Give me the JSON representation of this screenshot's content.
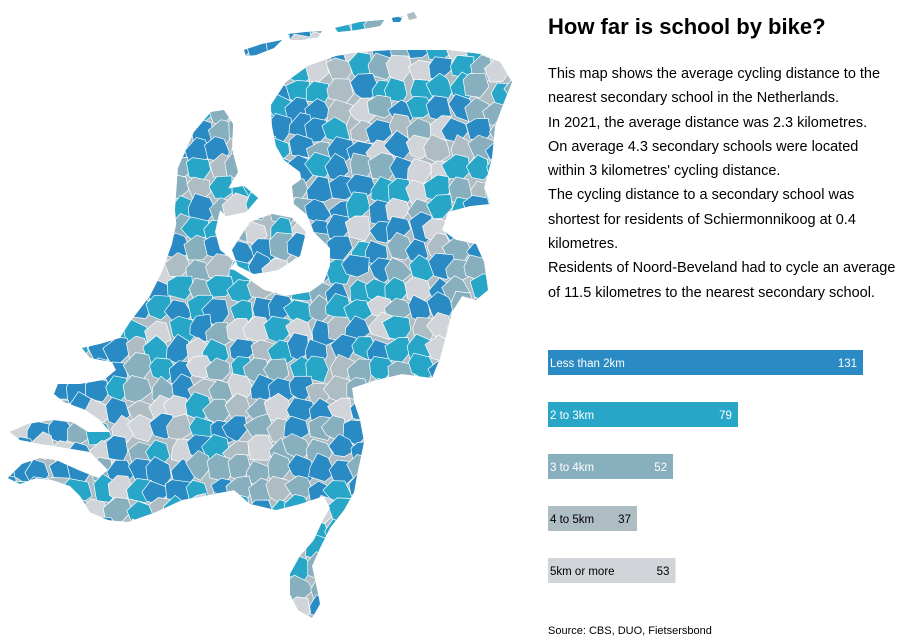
{
  "title": "How far is school by bike?",
  "description": [
    "This map shows the average cycling distance to the nearest secondary school in the Netherlands.",
    "In 2021, the average distance was 2.3 kilometres.",
    "On average 4.3 secondary schools were located within 3 kilometres' cycling distance.",
    "The cycling distance to a secondary school was shortest for residents of Schiermonnikoog at 0.4 kilometres.",
    "Residents of Noord-Beveland had to cycle an average of 11.5 kilometres to the nearest secondary school."
  ],
  "source": "Source: CBS, DUO, Fietsersbond",
  "colors": {
    "less_than_2km": "#2a8ac4",
    "2_to_3km": "#27a6c8",
    "3_to_4km": "#88afbe",
    "4_to_5km": "#aebcc3",
    "5km_or_more": "#d1d5d9"
  },
  "chart_data": {
    "type": "bar",
    "orientation": "horizontal",
    "categories": [
      "Less than 2km",
      "2 to 3km",
      "3 to 4km",
      "4 to 5km",
      "5km or more"
    ],
    "values": [
      131,
      79,
      52,
      37,
      53
    ],
    "colors": [
      "#2a8ac4",
      "#27a6c8",
      "#88afbe",
      "#aebcc3",
      "#d1d5d9"
    ],
    "label_colors": [
      "#ffffff",
      "#ffffff",
      "#ffffff",
      "#000000",
      "#000000"
    ],
    "xlim": [
      0,
      131
    ],
    "grid": false
  }
}
